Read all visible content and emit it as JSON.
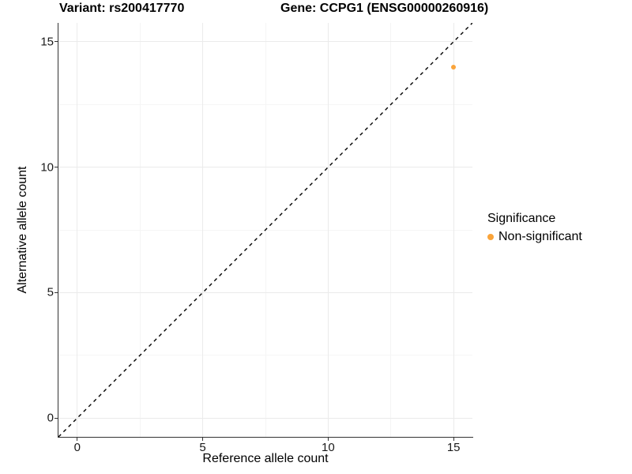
{
  "titles": {
    "variant": "Variant: rs200417770",
    "gene": "Gene: CCPG1 (ENSG00000260916)"
  },
  "chart_data": {
    "type": "scatter",
    "title_left": "Variant: rs200417770",
    "title_right": "Gene: CCPG1 (ENSG00000260916)",
    "xlabel": "Reference allele count",
    "ylabel": "Alternative allele count",
    "xlim": [
      -0.75,
      15.75
    ],
    "ylim": [
      -0.75,
      15.75
    ],
    "xticks": [
      0,
      5,
      10,
      15
    ],
    "yticks": [
      0,
      5,
      10,
      15
    ],
    "xminor": [
      2.5,
      7.5,
      12.5
    ],
    "yminor": [
      2.5,
      7.5,
      12.5
    ],
    "grid": true,
    "points": [
      {
        "x": 15,
        "y": 14,
        "series": "Non-significant"
      }
    ],
    "reference_line": {
      "description": "identity line y = x",
      "from": [
        -0.75,
        -0.75
      ],
      "to": [
        15.75,
        15.75
      ],
      "style": "dashed"
    },
    "legend": {
      "title": "Significance",
      "position": "right",
      "items": [
        {
          "label": "Non-significant",
          "color": "#FAA43A"
        }
      ]
    }
  },
  "colors": {
    "point": "#FAA43A",
    "grid_major": "#ebebeb",
    "grid_minor": "#f5f5f5",
    "axis": "#333333",
    "reference_line": "#000000",
    "background": "#ffffff"
  }
}
